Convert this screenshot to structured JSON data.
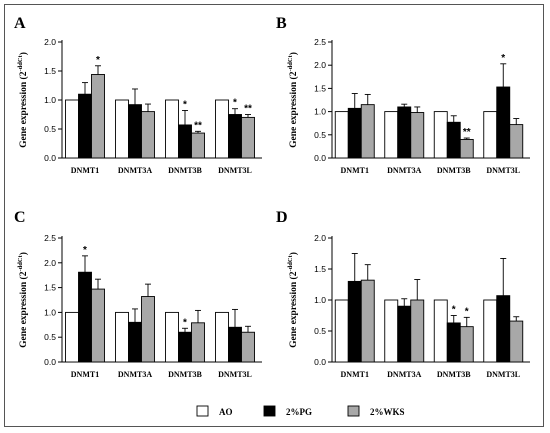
{
  "chart_data": [
    {
      "panel": "A",
      "type": "bar",
      "ylabel_main": "Gene expression (2",
      "ylabel_sup": "-ddCt",
      "ylabel_end": ")",
      "ylim": [
        0,
        2.0
      ],
      "yticks": [
        "0.0",
        "0.5",
        "1.0",
        "1.5",
        "2.0"
      ],
      "categories": [
        "DNMT1",
        "DNMT3A",
        "DNMT3B",
        "DNMT3L"
      ],
      "series": [
        {
          "name": "AO",
          "values": [
            1.0,
            1.0,
            1.0,
            1.0
          ],
          "errors": [
            0,
            0,
            0,
            0
          ]
        },
        {
          "name": "2%PG",
          "values": [
            1.1,
            0.92,
            0.57,
            0.75
          ],
          "errors": [
            0.2,
            0.27,
            0.25,
            0.1
          ]
        },
        {
          "name": "2%WKS",
          "values": [
            1.44,
            0.8,
            0.43,
            0.7
          ],
          "errors": [
            0.15,
            0.13,
            0.03,
            0.05
          ]
        }
      ],
      "annotations": [
        [
          "",
          "",
          "*"
        ],
        [
          "",
          "",
          ""
        ],
        [
          "",
          "*",
          "**"
        ],
        [
          "",
          "*",
          "**"
        ]
      ],
      "grid": false
    },
    {
      "panel": "B",
      "type": "bar",
      "ylabel_main": "Gene expression (2",
      "ylabel_sup": "-ddCt",
      "ylabel_end": ")",
      "ylim": [
        0,
        2.5
      ],
      "yticks": [
        "0.0",
        "0.5",
        "1.0",
        "1.5",
        "2.0",
        "2.5"
      ],
      "categories": [
        "DNMT1",
        "DNMT3A",
        "DNMT3B",
        "DNMT3L"
      ],
      "series": [
        {
          "name": "AO",
          "values": [
            1.0,
            1.0,
            1.0,
            1.0
          ],
          "errors": [
            0,
            0,
            0,
            0
          ]
        },
        {
          "name": "2%PG",
          "values": [
            1.07,
            1.1,
            0.77,
            1.53
          ],
          "errors": [
            0.32,
            0.06,
            0.14,
            0.5
          ]
        },
        {
          "name": "2%WKS",
          "values": [
            1.15,
            0.98,
            0.4,
            0.72
          ],
          "errors": [
            0.22,
            0.12,
            0.03,
            0.13
          ]
        }
      ],
      "annotations": [
        [
          "",
          "",
          ""
        ],
        [
          "",
          "",
          ""
        ],
        [
          "",
          "",
          "**"
        ],
        [
          "",
          "*",
          ""
        ]
      ],
      "grid": false
    },
    {
      "panel": "C",
      "type": "bar",
      "ylabel_main": "Gene expression (2",
      "ylabel_sup": "-ddCt",
      "ylabel_end": ")",
      "ylim": [
        0,
        2.5
      ],
      "yticks": [
        "0.0",
        "0.5",
        "1.0",
        "1.5",
        "2.0",
        "2.5"
      ],
      "categories": [
        "DNMT1",
        "DNMT3A",
        "DNMT3B",
        "DNMT3L"
      ],
      "series": [
        {
          "name": "AO",
          "values": [
            1.0,
            1.0,
            1.0,
            1.0
          ],
          "errors": [
            0,
            0,
            0,
            0
          ]
        },
        {
          "name": "2%PG",
          "values": [
            1.81,
            0.8,
            0.6,
            0.7
          ],
          "errors": [
            0.33,
            0.27,
            0.08,
            0.36
          ]
        },
        {
          "name": "2%WKS",
          "values": [
            1.47,
            1.32,
            0.79,
            0.6
          ],
          "errors": [
            0.2,
            0.25,
            0.25,
            0.12
          ]
        }
      ],
      "annotations": [
        [
          "",
          "*",
          ""
        ],
        [
          "",
          "",
          ""
        ],
        [
          "",
          "*",
          ""
        ],
        [
          "",
          "",
          ""
        ]
      ],
      "grid": false
    },
    {
      "panel": "D",
      "type": "bar",
      "ylabel_main": "Gene expression (2",
      "ylabel_sup": "-ddCt",
      "ylabel_end": ")",
      "ylim": [
        0,
        2.0
      ],
      "yticks": [
        "0.0",
        "0.5",
        "1.0",
        "1.5",
        "2.0"
      ],
      "categories": [
        "DNMT1",
        "DNMT3A",
        "DNMT3B",
        "DNMT3L"
      ],
      "series": [
        {
          "name": "AO",
          "values": [
            1.0,
            1.0,
            1.0,
            1.0
          ],
          "errors": [
            0,
            0,
            0,
            0
          ]
        },
        {
          "name": "2%PG",
          "values": [
            1.3,
            0.9,
            0.63,
            1.07
          ],
          "errors": [
            0.45,
            0.12,
            0.12,
            0.6
          ]
        },
        {
          "name": "2%WKS",
          "values": [
            1.32,
            1.0,
            0.57,
            0.66
          ],
          "errors": [
            0.25,
            0.33,
            0.15,
            0.07
          ]
        }
      ],
      "annotations": [
        [
          "",
          "",
          ""
        ],
        [
          "",
          "",
          ""
        ],
        [
          "",
          "*",
          "*"
        ],
        [
          "",
          "",
          ""
        ]
      ],
      "grid": false
    }
  ],
  "legend": {
    "items": [
      {
        "label": "AO",
        "fill": "#ffffff"
      },
      {
        "label": "2%PG",
        "fill": "#000000"
      },
      {
        "label": "2%WKS",
        "fill": "#a8a8a8"
      }
    ]
  },
  "colors": {
    "AO": "#ffffff",
    "2%PG": "#000000",
    "2%WKS": "#a8a8a8",
    "stroke": "#000000"
  }
}
